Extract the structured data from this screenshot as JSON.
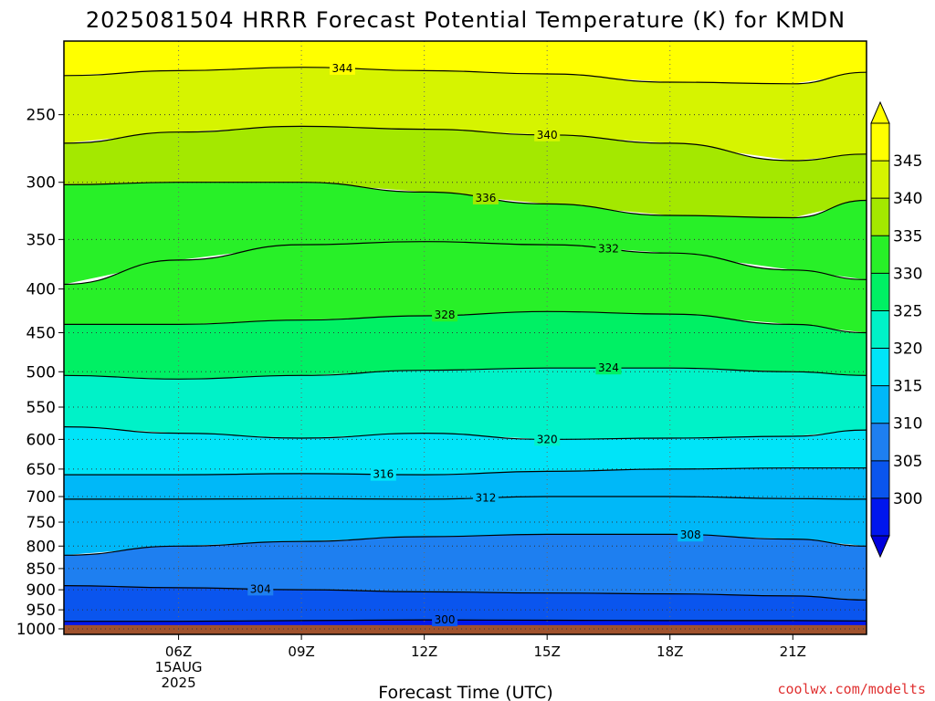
{
  "chart_data": {
    "type": "heatmap",
    "title": "2025081504 HRRR Forecast Potential Temperature (K) for KMDN",
    "xlabel": "Forecast Time (UTC)",
    "ylabel": "",
    "x_ticks": [
      "06Z",
      "09Z",
      "12Z",
      "15Z",
      "18Z",
      "21Z"
    ],
    "x_date_label": [
      "15AUG",
      "2025"
    ],
    "x_hours": [
      6,
      9,
      12,
      15,
      18,
      21
    ],
    "xlim": [
      3.2,
      22.8
    ],
    "y_scale": "log-pressure (hPa), inverted",
    "y_ticks": [
      250,
      300,
      350,
      400,
      450,
      500,
      550,
      600,
      650,
      700,
      750,
      800,
      850,
      900,
      950,
      1000
    ],
    "ylim": [
      1015,
      205
    ],
    "grid": true,
    "colorbar": {
      "levels": [
        300,
        305,
        310,
        315,
        320,
        325,
        330,
        335,
        340,
        345
      ],
      "colors": [
        "#0016ee",
        "#0a55ee",
        "#1e7ff0",
        "#00b8f8",
        "#00e4f8",
        "#00f2c8",
        "#00f064",
        "#28f028",
        "#a4e800",
        "#d6f400",
        "#ffff00"
      ],
      "under_color": "#0000dd",
      "over_color": "#ffff00"
    },
    "ground_color": "#a0522d",
    "contours": [
      {
        "level": 300,
        "label": "300",
        "pressure": [
          980,
          980,
          978,
          976,
          977,
          978,
          978,
          979
        ]
      },
      {
        "level": 304,
        "label": "304",
        "pressure": [
          890,
          895,
          900,
          905,
          908,
          910,
          915,
          925
        ]
      },
      {
        "level": 308,
        "label": "308",
        "pressure": [
          820,
          800,
          790,
          780,
          775,
          775,
          785,
          800
        ]
      },
      {
        "level": 312,
        "label": "312",
        "pressure": [
          705,
          705,
          704,
          705,
          700,
          700,
          704,
          705
        ]
      },
      {
        "level": 316,
        "label": "316",
        "pressure": [
          660,
          660,
          658,
          660,
          654,
          650,
          648,
          648
        ]
      },
      {
        "level": 320,
        "label": "320",
        "pressure": [
          580,
          590,
          598,
          590,
          600,
          598,
          595,
          585
        ]
      },
      {
        "level": 324,
        "label": "324",
        "pressure": [
          505,
          510,
          505,
          498,
          495,
          495,
          500,
          505
        ]
      },
      {
        "level": 328,
        "label": "328",
        "pressure": [
          440,
          440,
          435,
          430,
          425,
          428,
          440,
          450
        ]
      },
      {
        "level": 332,
        "label": "332",
        "pressure": [
          395,
          370,
          355,
          352,
          355,
          363,
          380,
          390
        ]
      },
      {
        "level": 336,
        "label": "336",
        "pressure": [
          302,
          300,
          300,
          308,
          318,
          328,
          330,
          315
        ]
      },
      {
        "level": 340,
        "label": "340",
        "pressure": [
          270,
          262,
          258,
          260,
          264,
          270,
          283,
          278
        ]
      },
      {
        "level": 344,
        "label": "344",
        "pressure": [
          225,
          222,
          220,
          222,
          224,
          229,
          230,
          223
        ]
      }
    ],
    "contour_x": [
      3.2,
      6,
      9,
      12,
      15,
      18,
      21,
      22.8
    ]
  },
  "credit": "coolwx.com/modelts"
}
